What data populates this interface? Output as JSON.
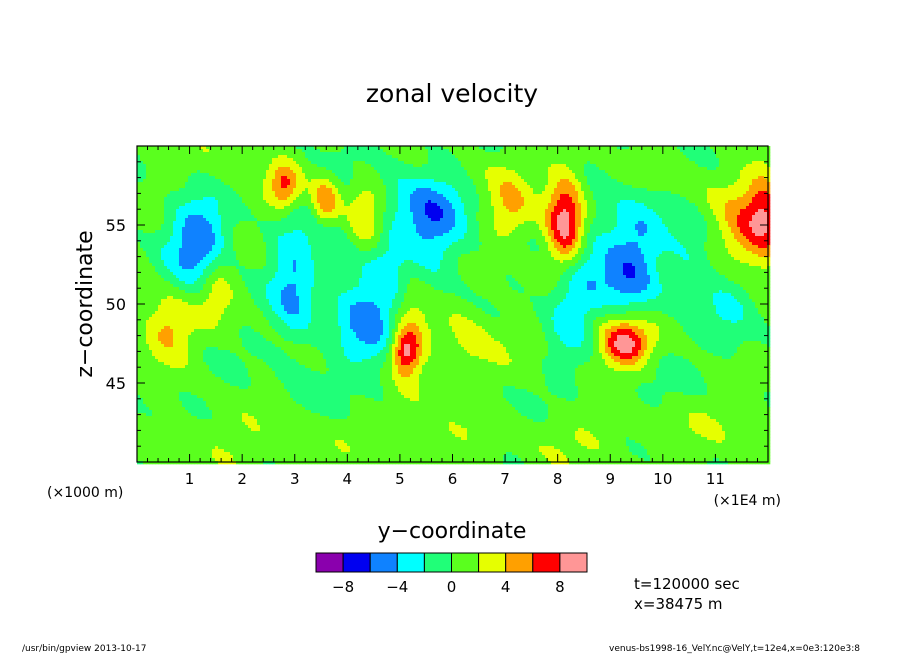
{
  "chart_data": {
    "type": "heatmap",
    "title": "zonal velocity",
    "xlabel": "y−coordinate",
    "ylabel": "z−coordinate",
    "x_ticks": [
      1,
      2,
      3,
      4,
      5,
      6,
      7,
      8,
      9,
      10,
      11
    ],
    "x_tick_labels": [
      "1",
      "2",
      "3",
      "4",
      "5",
      "6",
      "7",
      "8",
      "9",
      "10",
      "11"
    ],
    "x_unit_left": "(×1000 m)",
    "x_unit_right": "(×1E4 m)",
    "y_ticks": [
      45,
      50,
      55
    ],
    "y_tick_labels": [
      "45",
      "50",
      "55"
    ],
    "xlim": [
      0,
      12
    ],
    "ylim": [
      40,
      60
    ],
    "colorbar": {
      "levels": [
        -10,
        -8,
        -6,
        -4,
        -2,
        0,
        2,
        4,
        6,
        8,
        10
      ],
      "colors": [
        "#8a00ad",
        "#0000f0",
        "#0f82ff",
        "#00ffff",
        "#20ff78",
        "#5aff1e",
        "#e6ff00",
        "#ffa000",
        "#ff0000",
        "#ff9696"
      ],
      "tick_labels": [
        "−8",
        "−4",
        "0",
        "4",
        "8"
      ],
      "tick_values": [
        -8,
        -4,
        0,
        4,
        8
      ]
    },
    "features": [
      {
        "y": 8.15,
        "z": 55.0,
        "sy": 0.26,
        "sz": 2.2,
        "value": 10
      },
      {
        "y": 8.6,
        "z": 52.5,
        "sy": 0.35,
        "sz": 3.5,
        "value": -2.5
      },
      {
        "y": 5.6,
        "z": 55.5,
        "sy": 0.5,
        "sz": 2.2,
        "value": -5.5
      },
      {
        "y": 4.7,
        "z": 51.5,
        "sy": 0.55,
        "sz": 4.5,
        "value": -3
      },
      {
        "y": 3.8,
        "z": 55.5,
        "sy": 0.4,
        "sz": 2.5,
        "value": -2.5
      },
      {
        "y": 9.5,
        "z": 54.0,
        "sy": 0.4,
        "sz": 3.0,
        "value": -3.5
      },
      {
        "y": 9.3,
        "z": 51.0,
        "sy": 0.4,
        "sz": 2.5,
        "value": -3
      },
      {
        "y": 1.3,
        "z": 54.0,
        "sy": 0.35,
        "sz": 2.2,
        "value": -4.5
      },
      {
        "y": 0.9,
        "z": 54.0,
        "sy": 0.35,
        "sz": 2.5,
        "value": -2.5
      },
      {
        "y": 2.9,
        "z": 53.0,
        "sy": 0.3,
        "sz": 2.0,
        "value": -2.5
      },
      {
        "y": 3.0,
        "z": 50.0,
        "sy": 0.3,
        "sz": 2.0,
        "value": -3.5
      },
      {
        "y": 4.3,
        "z": 49.0,
        "sy": 0.4,
        "sz": 2.0,
        "value": -3
      },
      {
        "y": 8.2,
        "z": 50.5,
        "sy": 0.3,
        "sz": 2.5,
        "value": -4
      },
      {
        "y": 10.5,
        "z": 53.0,
        "sy": 0.3,
        "sz": 2.0,
        "value": -2.5
      },
      {
        "y": 11.3,
        "z": 50.0,
        "sy": 0.4,
        "sz": 2.0,
        "value": -2.5
      },
      {
        "y": 11.5,
        "z": 54.5,
        "sy": 0.35,
        "sz": 2.0,
        "value": 4.5
      },
      {
        "y": 11.95,
        "z": 55.5,
        "sy": 0.25,
        "sz": 2.0,
        "value": 6.5
      },
      {
        "y": 9.3,
        "z": 47.5,
        "sy": 0.3,
        "sz": 1.0,
        "value": 6.5
      },
      {
        "y": 9.15,
        "z": 48.0,
        "sy": 0.45,
        "sz": 1.5,
        "value": 4
      },
      {
        "y": 0.6,
        "z": 48.5,
        "sy": 0.35,
        "sz": 1.5,
        "value": 4.5
      },
      {
        "y": 4.3,
        "z": 55.5,
        "sy": 0.3,
        "sz": 2.0,
        "value": 5.5
      },
      {
        "y": 3.6,
        "z": 56.5,
        "sy": 0.2,
        "sz": 1.2,
        "value": 7
      },
      {
        "y": 5.2,
        "z": 49.0,
        "sy": 0.25,
        "sz": 3.5,
        "value": 3.5
      },
      {
        "y": 5.1,
        "z": 47.0,
        "sy": 0.2,
        "sz": 1.0,
        "value": 7
      },
      {
        "y": 7.1,
        "z": 56.0,
        "sy": 0.3,
        "sz": 1.5,
        "value": 3.5
      },
      {
        "y": 2.8,
        "z": 57.5,
        "sy": 0.2,
        "sz": 1.0,
        "value": 5.5
      },
      {
        "y": 1.5,
        "z": 51.0,
        "sy": 0.25,
        "sz": 1.5,
        "value": 3.5
      },
      {
        "y": 6.3,
        "z": 47.0,
        "sy": 0.45,
        "sz": 2.0,
        "value": 2.5
      },
      {
        "y": 0.3,
        "z": 45.0,
        "sy": 0.5,
        "sz": 1.5,
        "value": -0.5
      },
      {
        "y": 3.0,
        "z": 44.0,
        "sy": 0.7,
        "sz": 1.5,
        "value": -0.8
      },
      {
        "y": 6.5,
        "z": 44.0,
        "sy": 0.9,
        "sz": 1.5,
        "value": -0.6
      },
      {
        "y": 10.0,
        "z": 45.0,
        "sy": 0.7,
        "sz": 1.5,
        "value": -0.6
      },
      {
        "y": 2.0,
        "z": 41.5,
        "sy": 1.0,
        "sz": 1.5,
        "value": 1.2
      },
      {
        "y": 5.5,
        "z": 42.0,
        "sy": 1.0,
        "sz": 1.5,
        "value": 1.2
      },
      {
        "y": 8.5,
        "z": 41.5,
        "sy": 1.0,
        "sz": 1.5,
        "value": 1.2
      },
      {
        "y": 11.0,
        "z": 42.5,
        "sy": 0.8,
        "sz": 1.5,
        "value": 1.0
      },
      {
        "y": 1.5,
        "z": 58.0,
        "sy": 0.8,
        "sz": 1.5,
        "value": 1.2
      },
      {
        "y": 6.5,
        "z": 58.5,
        "sy": 0.8,
        "sz": 1.2,
        "value": 1.0
      },
      {
        "y": 10.0,
        "z": 57.5,
        "sy": 0.8,
        "sz": 1.5,
        "value": 1.0
      }
    ]
  },
  "annotations": {
    "time": "t=120000 sec",
    "xpos": "x=38475 m"
  },
  "footer": {
    "left": "/usr/bin/gpview  2013-10-17",
    "right": "venus-bs1998-16_VelY.nc@VelY,t=12e4,x=0e3:120e3:8"
  }
}
